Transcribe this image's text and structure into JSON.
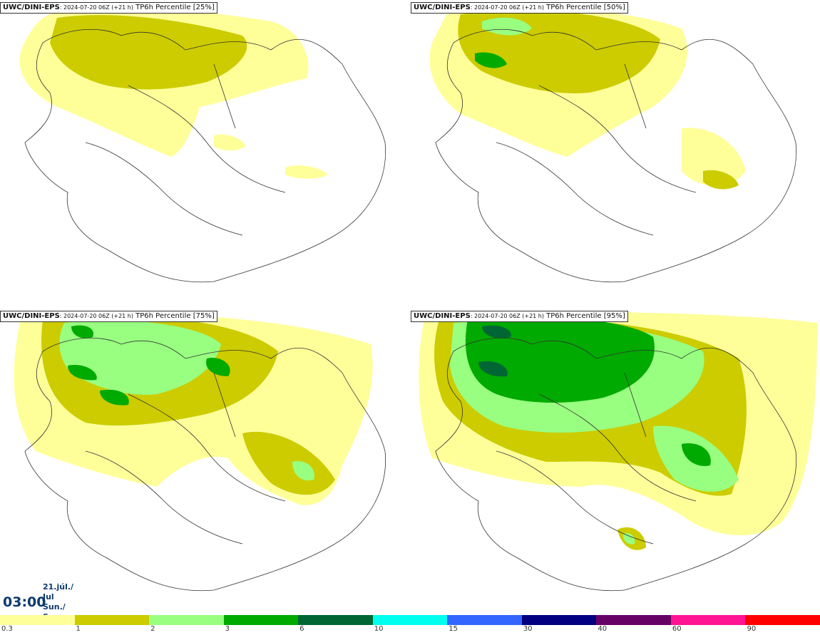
{
  "panels": [
    {
      "source": "UWC/DINI-EPS",
      "run": ": 2024-07-20 06Z (+21 h)",
      "variable": " TP6h Percentile [25%]"
    },
    {
      "source": "UWC/DINI-EPS",
      "run": ": 2024-07-20 06Z (+21 h)",
      "variable": " TP6h Percentile [50%]"
    },
    {
      "source": "UWC/DINI-EPS",
      "run": ": 2024-07-20 06Z (+21 h)",
      "variable": " TP6h Percentile [75%]"
    },
    {
      "source": "UWC/DINI-EPS",
      "run": ": 2024-07-20 06Z (+21 h)",
      "variable": " TP6h Percentile [95%]"
    }
  ],
  "time": {
    "clock": "03:00",
    "date_line1": "21.júl./ Jul",
    "date_line2": "Sun./ Sun"
  },
  "legend": {
    "colors": [
      "#ffff9a",
      "#cccc00",
      "#99ff80",
      "#00aa00",
      "#006633",
      "#00ffee",
      "#3366ff",
      "#000080",
      "#660066",
      "#ff1493",
      "#ff0000"
    ],
    "labels": [
      "0.3",
      "1",
      "2",
      "3",
      "6",
      "10",
      "15",
      "30",
      "40",
      "60",
      "90"
    ]
  },
  "icons": {
    "map": "iceland-outline-map"
  }
}
